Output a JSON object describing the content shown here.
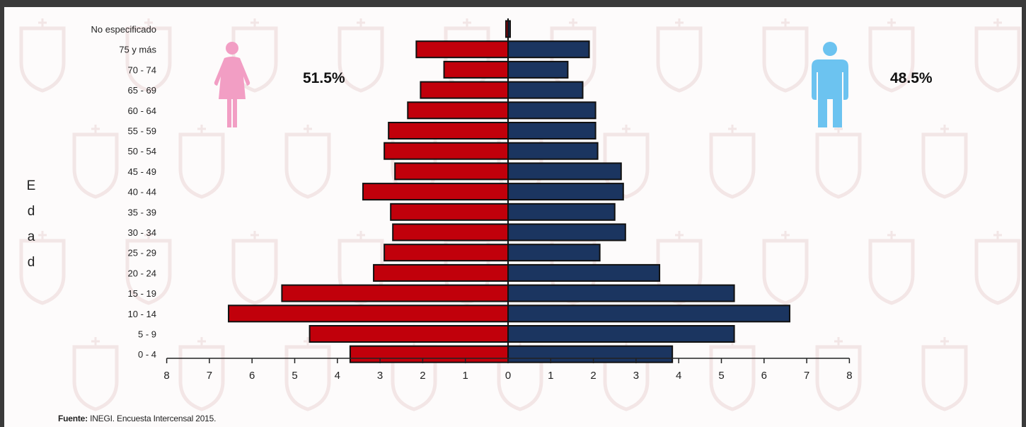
{
  "source": {
    "label": "Fuente:",
    "text": "INEGI. Encuesta Intercensal 2015."
  },
  "legend": {
    "female": {
      "pct": "51.5%",
      "icon": "woman-icon",
      "color": "#f29ec4"
    },
    "male": {
      "pct": "48.5%",
      "icon": "man-icon",
      "color": "#6cc3f0"
    }
  },
  "colors": {
    "female_bar": "#c1000b",
    "male_bar": "#1b3560",
    "bar_stroke": "#111111"
  },
  "chart_data": {
    "type": "bar",
    "orientation": "horizontal",
    "ylabel": "Edad",
    "xlim": [
      -8,
      8
    ],
    "xticks": [
      "8",
      "7",
      "6",
      "5",
      "4",
      "3",
      "2",
      "1",
      "0",
      "1",
      "2",
      "3",
      "4",
      "5",
      "6",
      "7",
      "8"
    ],
    "categories": [
      "No especificado",
      "75 y más",
      "70 - 74",
      "65 - 69",
      "60 - 64",
      "55 - 59",
      "50 - 54",
      "45 - 49",
      "40 - 44",
      "35 - 39",
      "30 - 34",
      "25 - 29",
      "20 - 24",
      "15 - 19",
      "10 - 14",
      "5 - 9",
      "0 - 4"
    ],
    "series": [
      {
        "name": "51.5%",
        "side": "left",
        "values": [
          0.05,
          2.15,
          1.5,
          2.05,
          2.35,
          2.8,
          2.9,
          2.65,
          3.4,
          2.75,
          2.7,
          2.9,
          3.15,
          5.3,
          6.55,
          4.65,
          3.7
        ]
      },
      {
        "name": "48.5%",
        "side": "right",
        "values": [
          0.05,
          1.9,
          1.4,
          1.75,
          2.05,
          2.05,
          2.1,
          2.65,
          2.7,
          2.5,
          2.75,
          2.15,
          3.55,
          5.3,
          6.6,
          5.3,
          3.85
        ]
      }
    ]
  }
}
